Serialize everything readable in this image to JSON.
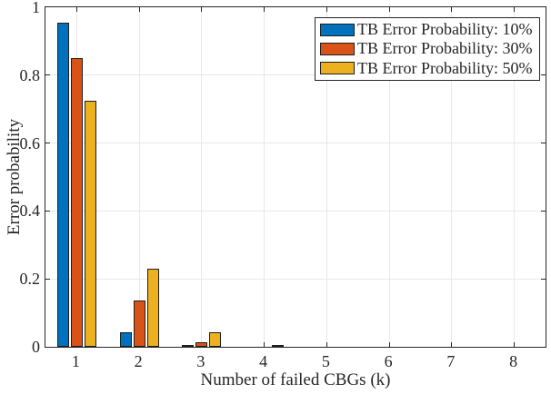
{
  "figure": {
    "background": "#ffffff",
    "axis_color": "#262626",
    "grid_color": "#e8e8e8",
    "bar_edge_color": "#1f1f1f",
    "text_color": "#262626"
  },
  "chart_data": {
    "type": "bar",
    "title": "",
    "xlabel": "Number of failed CBGs (k)",
    "ylabel": "Error probability",
    "categories": [
      "1",
      "2",
      "3",
      "4",
      "5",
      "6",
      "7",
      "8"
    ],
    "series": [
      {
        "name": "TB Error Probability: 10%",
        "color": "#0072BD",
        "values": [
          0.954,
          0.044,
          0.002,
          0,
          0,
          0,
          0,
          0
        ]
      },
      {
        "name": "TB Error Probability: 30%",
        "color": "#D95319",
        "values": [
          0.851,
          0.136,
          0.013,
          0,
          0,
          0,
          0,
          0
        ]
      },
      {
        "name": "TB Error Probability: 50%",
        "color": "#EDB120",
        "values": [
          0.724,
          0.229,
          0.042,
          0.005,
          0,
          0,
          0,
          0
        ]
      }
    ],
    "xlim": [
      0.5,
      8.5
    ],
    "ylim": [
      0,
      1
    ],
    "yticks": [
      0,
      0.2,
      0.4,
      0.6,
      0.8,
      1
    ],
    "ytick_labels": [
      "0",
      "0.2",
      "0.4",
      "0.6",
      "0.8",
      "1"
    ],
    "grid": true,
    "legend_position": "top-right",
    "legend_border": true
  }
}
